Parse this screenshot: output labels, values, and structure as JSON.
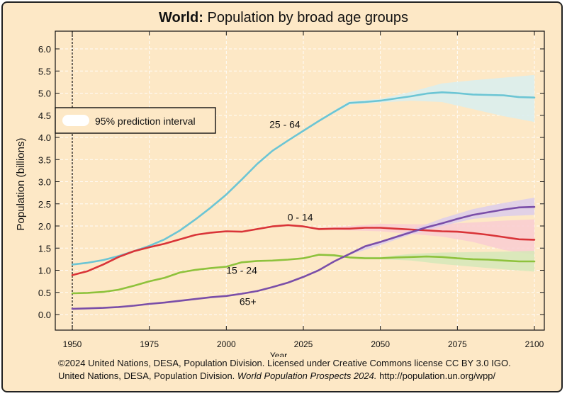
{
  "chart_data": {
    "type": "line",
    "title_bold": "World:",
    "title_rest": "Population by broad age groups",
    "xlabel": "Year",
    "ylabel": "Population (billions)",
    "xlim": [
      1950,
      2100
    ],
    "ylim": [
      -0.2,
      6.3
    ],
    "xticks": [
      1950,
      1975,
      2000,
      2025,
      2050,
      2075,
      2100
    ],
    "yticks": [
      "0.0",
      "0.5",
      "1.0",
      "1.5",
      "2.0",
      "2.5",
      "3.0",
      "3.5",
      "4.0",
      "4.5",
      "5.0",
      "5.5",
      "6.0"
    ],
    "legend_label": "95% prediction interval",
    "projection_start": 2023,
    "series": [
      {
        "name": "25 - 64",
        "label": "25 - 64",
        "color": "#6cc5d4",
        "band_color": "#d8eef0",
        "x": [
          1950,
          1955,
          1960,
          1965,
          1970,
          1975,
          1980,
          1985,
          1990,
          1995,
          2000,
          2005,
          2010,
          2015,
          2020,
          2025,
          2030,
          2035,
          2040,
          2045,
          2050,
          2055,
          2060,
          2065,
          2070,
          2075,
          2080,
          2085,
          2090,
          2095,
          2100
        ],
        "values": [
          1.13,
          1.17,
          1.23,
          1.32,
          1.43,
          1.55,
          1.7,
          1.9,
          2.15,
          2.42,
          2.71,
          3.05,
          3.4,
          3.7,
          3.93,
          4.15,
          4.37,
          4.58,
          4.78,
          4.8,
          4.83,
          4.88,
          4.93,
          4.99,
          5.02,
          5.0,
          4.97,
          4.96,
          4.95,
          4.91,
          4.9
        ],
        "band_x": [
          2023,
          2030,
          2040,
          2050,
          2060,
          2070,
          2080,
          2090,
          2100
        ],
        "band_low": [
          4.08,
          4.35,
          4.74,
          4.79,
          4.83,
          4.8,
          4.64,
          4.48,
          4.35
        ],
        "band_high": [
          4.08,
          4.39,
          4.82,
          4.87,
          5.03,
          5.22,
          5.29,
          5.35,
          5.41
        ]
      },
      {
        "name": "0 - 14",
        "label": "0 - 14",
        "color": "#d93438",
        "band_color": "#f9cdd1",
        "x": [
          1950,
          1955,
          1960,
          1965,
          1970,
          1975,
          1980,
          1985,
          1990,
          1995,
          2000,
          2005,
          2010,
          2015,
          2020,
          2025,
          2030,
          2035,
          2040,
          2045,
          2050,
          2055,
          2060,
          2065,
          2070,
          2075,
          2080,
          2085,
          2090,
          2095,
          2100
        ],
        "values": [
          0.89,
          0.98,
          1.13,
          1.3,
          1.43,
          1.52,
          1.6,
          1.7,
          1.8,
          1.85,
          1.88,
          1.87,
          1.93,
          1.99,
          2.02,
          1.99,
          1.93,
          1.94,
          1.94,
          1.96,
          1.96,
          1.94,
          1.92,
          1.9,
          1.88,
          1.87,
          1.84,
          1.8,
          1.75,
          1.7,
          1.69
        ],
        "band_x": [
          2023,
          2030,
          2040,
          2050,
          2060,
          2070,
          2080,
          2090,
          2100
        ],
        "band_low": [
          2.0,
          1.92,
          1.9,
          1.88,
          1.82,
          1.76,
          1.64,
          1.46,
          1.35
        ],
        "band_high": [
          2.0,
          1.96,
          2.0,
          2.05,
          2.04,
          2.04,
          2.08,
          2.12,
          2.15
        ]
      },
      {
        "name": "15 - 24",
        "label": "15 - 24",
        "color": "#8ec23c",
        "band_color": "#d5e8b8",
        "x": [
          1950,
          1955,
          1960,
          1965,
          1970,
          1975,
          1980,
          1985,
          1990,
          1995,
          2000,
          2005,
          2010,
          2015,
          2020,
          2025,
          2030,
          2035,
          2040,
          2045,
          2050,
          2055,
          2060,
          2065,
          2070,
          2075,
          2080,
          2085,
          2090,
          2095,
          2100
        ],
        "values": [
          0.48,
          0.49,
          0.51,
          0.56,
          0.65,
          0.75,
          0.83,
          0.95,
          1.01,
          1.05,
          1.08,
          1.18,
          1.21,
          1.22,
          1.24,
          1.27,
          1.35,
          1.34,
          1.29,
          1.27,
          1.27,
          1.29,
          1.3,
          1.31,
          1.3,
          1.27,
          1.25,
          1.24,
          1.22,
          1.2,
          1.2
        ],
        "band_x": [
          2023,
          2030,
          2040,
          2050,
          2060,
          2070,
          2080,
          2090,
          2100
        ],
        "band_low": [
          1.26,
          1.34,
          1.27,
          1.25,
          1.22,
          1.14,
          1.08,
          1.02,
          0.97
        ],
        "band_high": [
          1.26,
          1.37,
          1.31,
          1.3,
          1.37,
          1.4,
          1.41,
          1.42,
          1.44
        ]
      },
      {
        "name": "65+",
        "label": "65+",
        "color": "#7a4ea8",
        "band_color": "#dccdeb",
        "x": [
          1950,
          1955,
          1960,
          1965,
          1970,
          1975,
          1980,
          1985,
          1990,
          1995,
          2000,
          2005,
          2010,
          2015,
          2020,
          2025,
          2030,
          2035,
          2040,
          2045,
          2050,
          2055,
          2060,
          2065,
          2070,
          2075,
          2080,
          2085,
          2090,
          2095,
          2100
        ],
        "values": [
          0.13,
          0.14,
          0.15,
          0.17,
          0.2,
          0.24,
          0.27,
          0.31,
          0.35,
          0.39,
          0.42,
          0.47,
          0.53,
          0.62,
          0.72,
          0.85,
          1.0,
          1.2,
          1.37,
          1.54,
          1.64,
          1.75,
          1.86,
          1.97,
          2.06,
          2.16,
          2.25,
          2.31,
          2.37,
          2.42,
          2.43
        ],
        "band_x": [
          2023,
          2030,
          2040,
          2050,
          2060,
          2070,
          2080,
          2090,
          2100
        ],
        "band_low": [
          0.8,
          1.0,
          1.35,
          1.57,
          1.81,
          2.0,
          2.16,
          2.22,
          2.25
        ],
        "band_high": [
          0.8,
          1.02,
          1.39,
          1.65,
          1.91,
          2.17,
          2.38,
          2.52,
          2.64
        ]
      }
    ]
  },
  "footer": {
    "line1": "©2024 United Nations, DESA, Population Division. Licensed under Creative Commons license CC BY 3.0 IGO.",
    "line2_plain": "United Nations, DESA, Population Division. ",
    "line2_italic": "World Population Prospects 2024.",
    "line2_url": " http://population.un.org/wpp/"
  }
}
